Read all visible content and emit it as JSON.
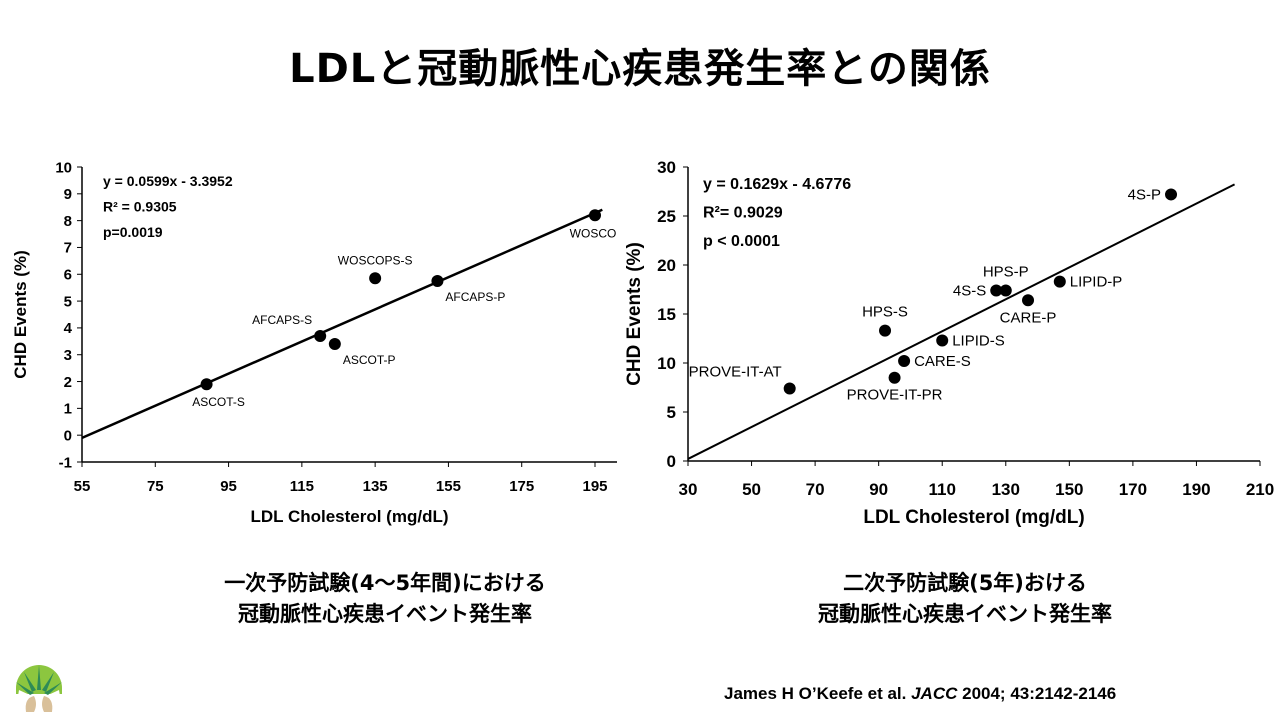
{
  "title": "LDLと冠動脈性心疾患発生率との関係",
  "chart_data": [
    {
      "type": "scatter",
      "xlabel": "LDL Cholesterol (mg/dL)",
      "ylabel": "CHD Events (%)",
      "xlim": [
        55,
        195
      ],
      "ylim": [
        -1,
        10
      ],
      "xticks": [
        55,
        75,
        95,
        115,
        135,
        155,
        175,
        195
      ],
      "yticks": [
        -1,
        0,
        1,
        2,
        3,
        4,
        5,
        6,
        7,
        8,
        9,
        10
      ],
      "stats": [
        "y = 0.0599x - 3.3952",
        "R² = 0.9305",
        "p=0.0019"
      ],
      "trendline": {
        "slope": 0.0599,
        "intercept": -3.3952,
        "x_range": [
          55,
          197
        ]
      },
      "points": [
        {
          "label": "ASCOT-S",
          "x": 89,
          "y": 1.9,
          "label_pos": "below"
        },
        {
          "label": "AFCAPS-S",
          "x": 120,
          "y": 3.7,
          "label_pos": "above-left"
        },
        {
          "label": "ASCOT-P",
          "x": 124,
          "y": 3.4,
          "label_pos": "below-right"
        },
        {
          "label": "WOSCOPS-S",
          "x": 135,
          "y": 5.85,
          "label_pos": "above"
        },
        {
          "label": "AFCAPS-P",
          "x": 152,
          "y": 5.75,
          "label_pos": "below-right"
        },
        {
          "label": "WOSCOPS-P",
          "x": 195,
          "y": 8.2,
          "label_pos": "below"
        }
      ]
    },
    {
      "type": "scatter",
      "xlabel": "LDL Cholesterol (mg/dL)",
      "ylabel": "CHD Events (%)",
      "xlim": [
        30,
        210
      ],
      "ylim": [
        0,
        30
      ],
      "xticks": [
        30,
        50,
        70,
        90,
        110,
        130,
        150,
        170,
        190,
        210
      ],
      "yticks": [
        0,
        5,
        10,
        15,
        20,
        25,
        30
      ],
      "stats": [
        "y = 0.1629x - 4.6776",
        "R²= 0.9029",
        "p < 0.0001"
      ],
      "trendline": {
        "slope": 0.1629,
        "intercept": -4.6776,
        "x_range": [
          30,
          202
        ]
      },
      "points": [
        {
          "label": "PROVE-IT-AT",
          "x": 62,
          "y": 7.4,
          "label_pos": "above-left"
        },
        {
          "label": "PROVE-IT-PR",
          "x": 95,
          "y": 8.5,
          "label_pos": "below"
        },
        {
          "label": "CARE-S",
          "x": 98,
          "y": 10.2,
          "label_pos": "right"
        },
        {
          "label": "HPS-S",
          "x": 92,
          "y": 13.3,
          "label_pos": "above"
        },
        {
          "label": "LIPID-S",
          "x": 110,
          "y": 12.3,
          "label_pos": "right"
        },
        {
          "label": "4S-S",
          "x": 127,
          "y": 17.4,
          "label_pos": "left"
        },
        {
          "label": "HPS-P",
          "x": 130,
          "y": 17.4,
          "label_pos": "above"
        },
        {
          "label": "CARE-P",
          "x": 137,
          "y": 16.4,
          "label_pos": "below"
        },
        {
          "label": "LIPID-P",
          "x": 147,
          "y": 18.3,
          "label_pos": "right"
        },
        {
          "label": "4S-P",
          "x": 182,
          "y": 27.2,
          "label_pos": "left"
        }
      ]
    }
  ],
  "captions": {
    "left": [
      "一次予防試験(4～5年間)における",
      "冠動脈性心疾患イベント発生率"
    ],
    "right": [
      "二次予防試験(5年)おける",
      "冠動脈性心疾患イベント発生率"
    ]
  },
  "citation": {
    "authors": "James H O’Keefe et al. ",
    "journal": "JACC",
    "details": " 2004; 43:2142-2146"
  },
  "logo": {
    "name": "tree-logo",
    "colors": [
      "#8cc63f",
      "#2e8b57",
      "#d9c09a"
    ]
  }
}
